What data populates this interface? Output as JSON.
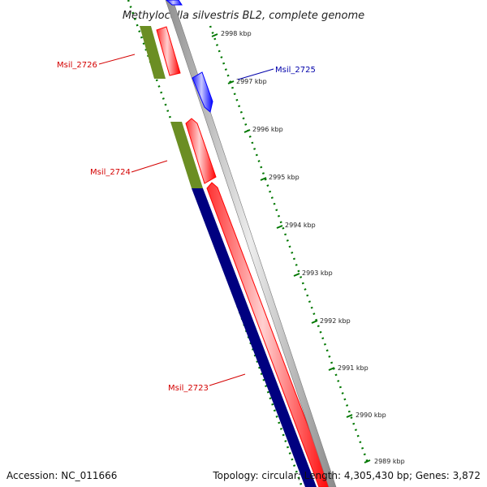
{
  "title": "Methylocella silvestris BL2, complete genome",
  "scale_ticks": [
    {
      "label": "2998 kbp",
      "kbp": 2998
    },
    {
      "label": "2997 kbp",
      "kbp": 2997
    },
    {
      "label": "2996 kbp",
      "kbp": 2996
    },
    {
      "label": "2995 kbp",
      "kbp": 2995
    },
    {
      "label": "2994 kbp",
      "kbp": 2994
    },
    {
      "label": "2993 kbp",
      "kbp": 2993
    },
    {
      "label": "2992 kbp",
      "kbp": 2992
    },
    {
      "label": "2991 kbp",
      "kbp": 2991
    },
    {
      "label": "2990 kbp",
      "kbp": 2990
    },
    {
      "label": "2989 kbp",
      "kbp": 2989
    }
  ],
  "gene_labels": [
    {
      "name": "Msil_2726",
      "color": "#d40000"
    },
    {
      "name": "Msil_2725",
      "color": "#0000aa"
    },
    {
      "name": "Msil_2724",
      "color": "#d40000"
    },
    {
      "name": "Msil_2723",
      "color": "#d40000"
    }
  ],
  "colors": {
    "cds_red": "#ff0000",
    "cds_blue": "#0000ff",
    "cog_green": "#6b8e23",
    "cog_navy": "#000080",
    "backbone": "#8c8c8c",
    "scale_green": "#007700"
  },
  "footer": {
    "accession": "Accession: NC_011666",
    "summary": "Topology: circular; Length: 4,305,430 bp; Genes: 3,872"
  }
}
